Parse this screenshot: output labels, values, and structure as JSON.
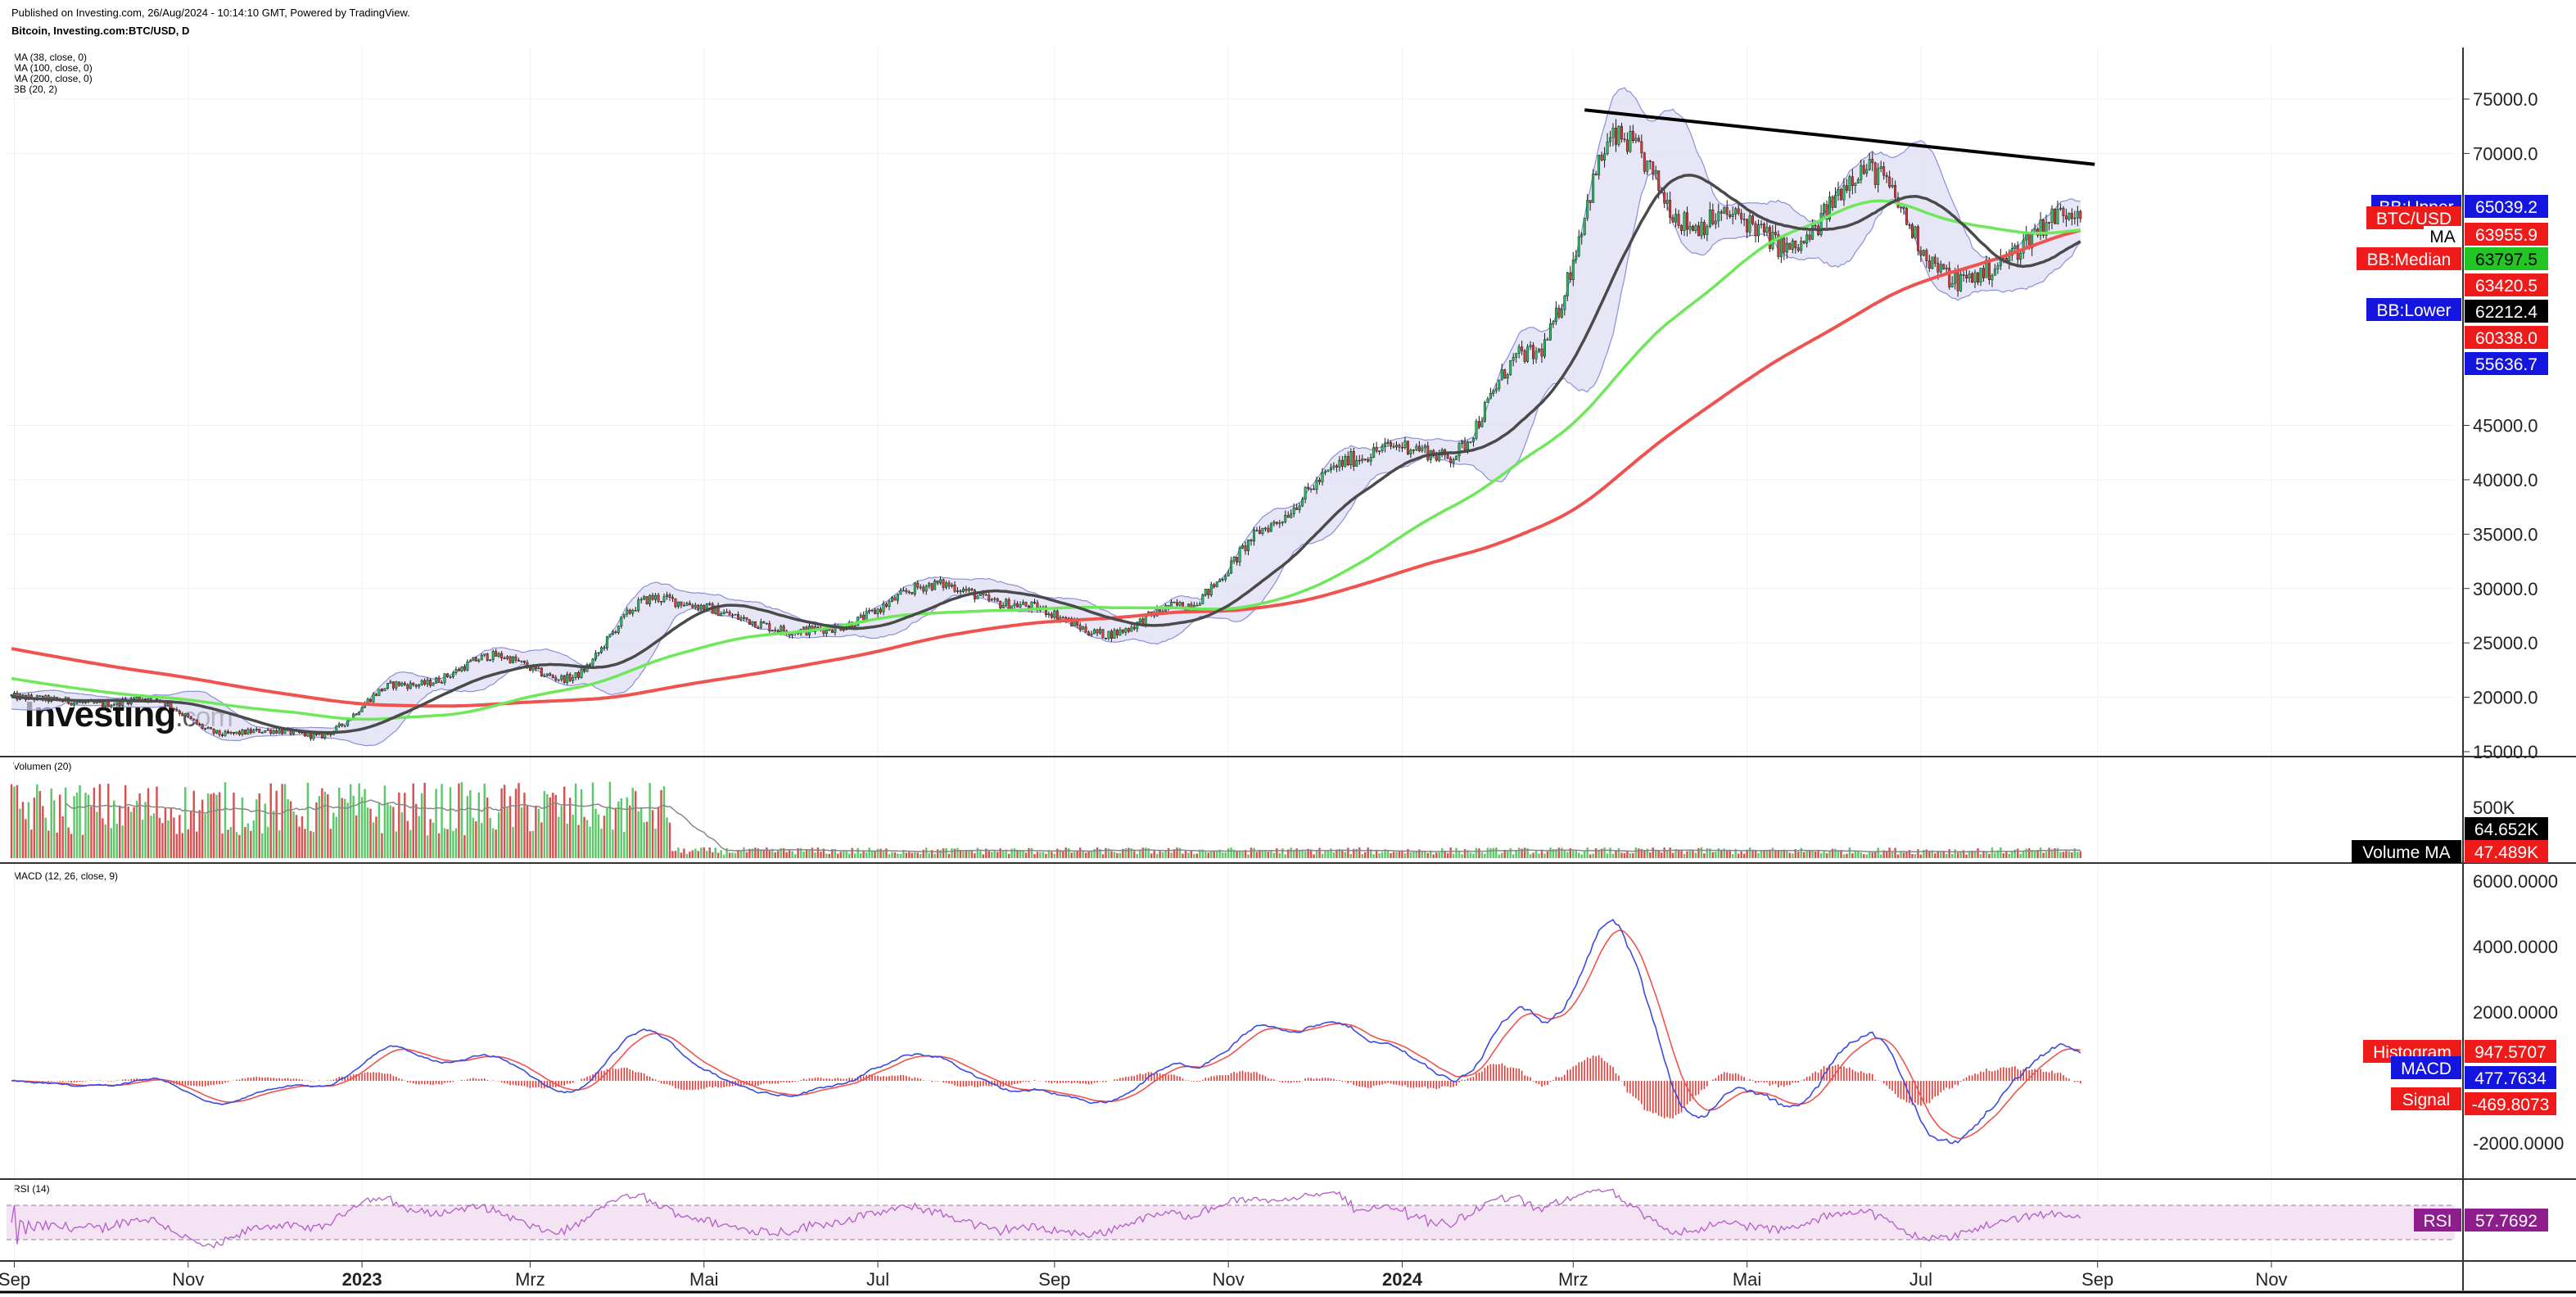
{
  "header": {
    "published": "Published on Investing.com, 26/Aug/2024 - 10:14:10 GMT, Powered by TradingView.",
    "symbol": "Bitcoin, Investing.com:BTC/USD, D"
  },
  "indicators": [
    "MA (38, close, 0)",
    "MA (100, close, 0)",
    "MA (200, close, 0)",
    "BB (20, 2)"
  ],
  "panes": {
    "volume": {
      "label": "Volumen (20)",
      "axis_ticks": [
        "500K"
      ]
    },
    "macd": {
      "label": "MACD (12, 26, close, 9)",
      "axis_ticks": [
        "6000.0000",
        "4000.0000",
        "2000.0000",
        "-2000.0000"
      ]
    },
    "rsi": {
      "label": "RSI (14)"
    }
  },
  "logo": {
    "text": "Investing",
    "suffix": ".com"
  },
  "colors": {
    "up": "#22c55e",
    "down": "#e53935",
    "ma38": "#4a4a4a",
    "ma100": "#6ee85a",
    "ma200": "#ef5350",
    "bb_band": "#8a8fd8",
    "bb_fill": "#dcdcf4",
    "macd_line": "#3b4bdf",
    "signal_line": "#ef5350",
    "rsi_line": "#b45cc8",
    "rsi_fill": "#f3e3f3",
    "trendline": "#000000"
  },
  "chart_data": [
    {
      "type": "candlestick",
      "title": "Bitcoin, Investing.com:BTC/USD, D",
      "x_ticks": [
        "Sep",
        "Nov",
        "2023",
        "Mrz",
        "Mai",
        "Jul",
        "Sep",
        "Nov",
        "2024",
        "Mrz",
        "Mai",
        "Jul",
        "Sep",
        "Nov"
      ],
      "y_ticks": [
        75000,
        70000,
        45000,
        40000,
        35000,
        30000,
        25000,
        20000,
        15000
      ],
      "y_tick_labels": [
        "75000.0",
        "70000.0",
        "45000.0",
        "40000.0",
        "35000.0",
        "30000.0",
        "25000.0",
        "20000.0",
        "15000.0"
      ],
      "ylim": [
        14600,
        79600
      ],
      "price_path": [
        {
          "x": "Aug 2022",
          "y": 21000
        },
        {
          "x": "Sep 2022",
          "y": 19500
        },
        {
          "x": "Oct 2022",
          "y": 19800
        },
        {
          "x": "Nov 2022",
          "y": 16800
        },
        {
          "x": "Dec 2022",
          "y": 16600
        },
        {
          "x": "Jan 2023",
          "y": 21000
        },
        {
          "x": "Feb 2023",
          "y": 23500
        },
        {
          "x": "Mar 2023",
          "y": 22000
        },
        {
          "x": "Apr 2023",
          "y": 29500
        },
        {
          "x": "May 2023",
          "y": 27000
        },
        {
          "x": "Jun 2023",
          "y": 26000
        },
        {
          "x": "Jul 2023",
          "y": 30200
        },
        {
          "x": "Aug 2023",
          "y": 29000
        },
        {
          "x": "Sep 2023",
          "y": 26000
        },
        {
          "x": "Oct 2023",
          "y": 28000
        },
        {
          "x": "Nov 2023",
          "y": 35500
        },
        {
          "x": "Dec 2023",
          "y": 42500
        },
        {
          "x": "Jan 2024",
          "y": 42500
        },
        {
          "x": "Feb 2024",
          "y": 51000
        },
        {
          "x": "Mar 2024",
          "y": 70500
        },
        {
          "x": "Apr 2024",
          "y": 64000
        },
        {
          "x": "May 2024",
          "y": 62000
        },
        {
          "x": "Jun 2024",
          "y": 68000
        },
        {
          "x": "Jul 2024",
          "y": 57500
        },
        {
          "x": "Aug 2024",
          "y": 64000
        }
      ],
      "series": [
        {
          "name": "BTC/USD",
          "last": "63955.9"
        },
        {
          "name": "MA",
          "last": "63420.5"
        },
        {
          "name": "BB:Upper",
          "last": "65039.2"
        },
        {
          "name": "BB:Median",
          "last": "63797.5"
        },
        {
          "name": "BB:Lower",
          "last": "62212.4"
        }
      ],
      "extra_price_labels": [
        "60338.0",
        "55636.7"
      ],
      "trendline": {
        "from": {
          "x": "Mar 2024",
          "y": 74000
        },
        "to": {
          "x": "Sep 2024",
          "y": 69000
        }
      }
    },
    {
      "type": "bar",
      "title": "Volumen (20)",
      "series": [
        {
          "name": "Volume MA",
          "last": "47.489K"
        }
      ],
      "last_volume": "64.652K"
    },
    {
      "type": "line",
      "title": "MACD (12, 26, close, 9)",
      "series": [
        {
          "name": "Histogram",
          "last": "947.5707"
        },
        {
          "name": "MACD",
          "last": "477.7634"
        },
        {
          "name": "Signal",
          "last": "-469.8073"
        }
      ],
      "macd_peak": 5500,
      "macd_min": -2200
    },
    {
      "type": "line",
      "title": "RSI (14)",
      "series": [
        {
          "name": "RSI",
          "last": "57.7692"
        }
      ]
    }
  ]
}
